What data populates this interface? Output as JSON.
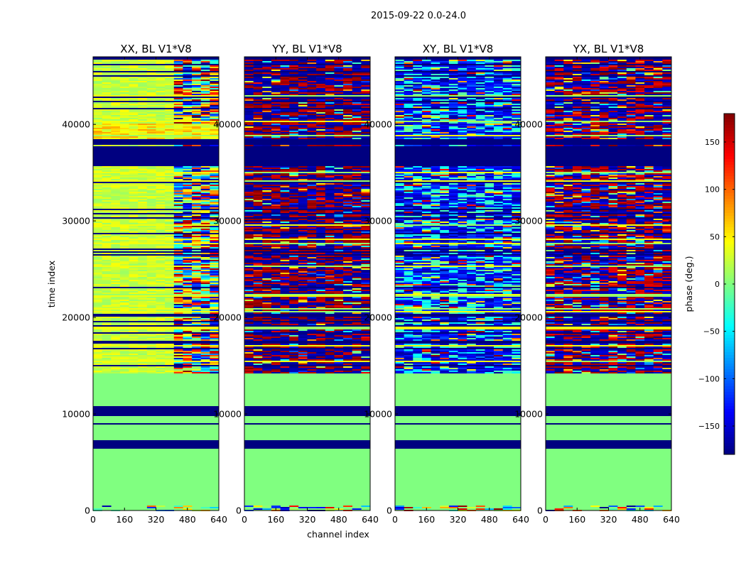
{
  "chart_data": {
    "type": "heatmap",
    "suptitle": "2015-09-22 0.0-24.0",
    "xlabel": "channel index",
    "ylabel": "time index",
    "xlim": [
      0,
      640
    ],
    "ylim": [
      0,
      47000
    ],
    "xticks": [
      0,
      160,
      320,
      480,
      640
    ],
    "yticks": [
      0,
      10000,
      20000,
      30000,
      40000
    ],
    "panels": [
      {
        "title": "XX, BL V1*V8",
        "pol": "XX"
      },
      {
        "title": "YY, BL V1*V8",
        "pol": "YY"
      },
      {
        "title": "XY, BL V1*V8",
        "pol": "XY"
      },
      {
        "title": "YX, BL V1*V8",
        "pol": "YX"
      }
    ],
    "colorbar": {
      "label": "phase (deg.)",
      "colormap": "jet",
      "range": [
        -180,
        180
      ],
      "ticks": [
        -150,
        -100,
        -50,
        0,
        50,
        100,
        150
      ],
      "tick_labels": [
        "−150",
        "−100",
        "−50",
        "0",
        "50",
        "100",
        "150"
      ]
    },
    "regions": {
      "flat_zero_phase_time_range": [
        1000,
        14300
      ],
      "flagged_time_ranges": [
        [
          6500,
          7300
        ],
        [
          9800,
          10900
        ],
        [
          35800,
          37800
        ],
        [
          38000,
          38500
        ]
      ],
      "noisy_time_range": [
        14500,
        47000
      ],
      "noisy_channel_split": 400
    }
  }
}
